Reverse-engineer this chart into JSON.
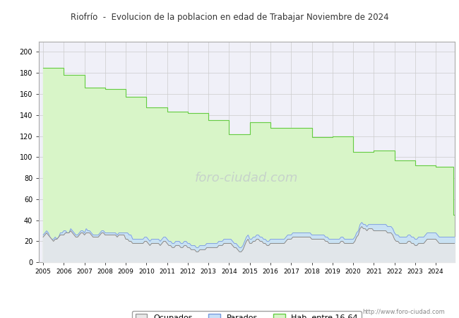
{
  "title": "Riofrío  -  Evolucion de la poblacion en edad de Trabajar Noviembre de 2024",
  "title_color": "#333333",
  "title_bg": "#e8e8f0",
  "xlabel": "",
  "ylabel": "",
  "ylim": [
    0,
    210
  ],
  "yticks": [
    0,
    20,
    40,
    60,
    80,
    100,
    120,
    140,
    160,
    180,
    200
  ],
  "url_text": "http://www.foro-ciudad.com",
  "legend_labels": [
    "Ocupados",
    "Parados",
    "Hab. entre 16-64"
  ],
  "grid_color": "#cccccc",
  "plot_bg": "#f0f0f8",
  "hab_fill_color": "#d8f5c8",
  "hab_line_color": "#66cc44",
  "parados_fill_color": "#c8e0f8",
  "parados_line_color": "#7799dd",
  "ocupados_fill_color": "#e8e8e8",
  "ocupados_line_color": "#888888",
  "years": [
    2005,
    2006,
    2007,
    2008,
    2009,
    2010,
    2011,
    2012,
    2013,
    2014,
    2015,
    2016,
    2017,
    2018,
    2019,
    2020,
    2021,
    2022,
    2023,
    2024
  ],
  "hab_values": [
    185,
    178,
    166,
    165,
    157,
    147,
    143,
    142,
    135,
    122,
    133,
    128,
    128,
    119,
    120,
    105,
    106,
    97,
    92,
    91
  ],
  "hab_values_end": [
    185,
    177,
    165,
    164,
    156,
    146,
    142,
    141,
    134,
    121,
    132,
    127,
    127,
    118,
    119,
    104,
    105,
    96,
    91,
    45
  ],
  "parados_monthly": [
    26,
    28,
    30,
    28,
    24,
    22,
    22,
    24,
    22,
    24,
    28,
    28,
    30,
    30,
    28,
    28,
    32,
    30,
    28,
    26,
    26,
    28,
    30,
    30,
    28,
    32,
    30,
    30,
    28,
    26,
    26,
    26,
    26,
    28,
    30,
    30,
    28,
    28,
    28,
    28,
    28,
    28,
    28,
    26,
    28,
    28,
    28,
    28,
    28,
    28,
    26,
    26,
    22,
    22,
    22,
    22,
    22,
    22,
    22,
    24,
    24,
    22,
    20,
    22,
    22,
    22,
    22,
    22,
    20,
    22,
    24,
    24,
    22,
    20,
    20,
    18,
    18,
    20,
    20,
    20,
    18,
    18,
    20,
    20,
    18,
    18,
    16,
    16,
    16,
    14,
    14,
    16,
    16,
    16,
    16,
    18,
    18,
    18,
    18,
    18,
    18,
    18,
    20,
    20,
    20,
    22,
    22,
    22,
    22,
    22,
    20,
    18,
    18,
    16,
    14,
    14,
    16,
    20,
    24,
    26,
    22,
    22,
    24,
    24,
    26,
    26,
    24,
    24,
    22,
    22,
    20,
    20,
    22,
    22,
    22,
    22,
    22,
    22,
    22,
    22,
    22,
    24,
    26,
    26,
    26,
    28,
    28,
    28,
    28,
    28,
    28,
    28,
    28,
    28,
    28,
    28,
    26,
    26,
    26,
    26,
    26,
    26,
    26,
    26,
    24,
    24,
    22,
    22,
    22,
    22,
    22,
    22,
    22,
    24,
    24,
    22,
    22,
    22,
    22,
    22,
    22,
    24,
    28,
    30,
    36,
    38,
    36,
    36,
    34,
    36,
    36,
    36,
    36,
    36,
    36,
    36,
    36,
    36,
    36,
    36,
    34,
    34,
    34,
    32,
    28,
    26,
    26,
    24,
    24,
    24,
    24,
    24,
    26,
    26,
    24,
    24,
    22,
    22,
    24,
    24,
    24,
    24,
    26,
    28,
    28,
    28,
    28,
    28,
    28,
    26,
    24,
    24,
    24,
    24,
    24,
    24,
    24,
    24,
    24,
    24
  ],
  "ocupados_monthly": [
    24,
    26,
    28,
    26,
    24,
    22,
    20,
    22,
    22,
    24,
    26,
    26,
    26,
    28,
    28,
    28,
    30,
    28,
    26,
    24,
    24,
    26,
    28,
    28,
    26,
    28,
    28,
    28,
    26,
    24,
    24,
    24,
    24,
    26,
    28,
    28,
    26,
    26,
    26,
    26,
    26,
    26,
    26,
    24,
    26,
    26,
    26,
    26,
    22,
    22,
    20,
    20,
    18,
    18,
    18,
    18,
    18,
    18,
    18,
    20,
    20,
    18,
    16,
    18,
    18,
    18,
    18,
    18,
    16,
    18,
    20,
    20,
    18,
    16,
    16,
    14,
    14,
    16,
    16,
    16,
    14,
    14,
    16,
    16,
    14,
    14,
    12,
    12,
    12,
    10,
    10,
    12,
    12,
    12,
    12,
    14,
    14,
    14,
    14,
    14,
    14,
    14,
    16,
    16,
    16,
    18,
    18,
    18,
    18,
    18,
    16,
    14,
    14,
    12,
    10,
    10,
    12,
    16,
    20,
    22,
    18,
    18,
    20,
    20,
    22,
    22,
    20,
    20,
    18,
    18,
    16,
    16,
    18,
    18,
    18,
    18,
    18,
    18,
    18,
    18,
    18,
    20,
    22,
    22,
    22,
    24,
    24,
    24,
    24,
    24,
    24,
    24,
    24,
    24,
    24,
    24,
    22,
    22,
    22,
    22,
    22,
    22,
    22,
    22,
    20,
    20,
    18,
    18,
    18,
    18,
    18,
    18,
    18,
    20,
    20,
    18,
    18,
    18,
    18,
    18,
    18,
    20,
    24,
    26,
    32,
    34,
    32,
    32,
    30,
    32,
    32,
    32,
    30,
    30,
    30,
    30,
    30,
    30,
    30,
    30,
    28,
    28,
    28,
    26,
    22,
    20,
    20,
    18,
    18,
    18,
    18,
    18,
    20,
    20,
    18,
    18,
    16,
    16,
    18,
    18,
    18,
    18,
    20,
    22,
    22,
    22,
    22,
    22,
    22,
    20,
    18,
    18,
    18,
    18,
    18,
    18,
    18,
    18,
    18,
    18
  ]
}
